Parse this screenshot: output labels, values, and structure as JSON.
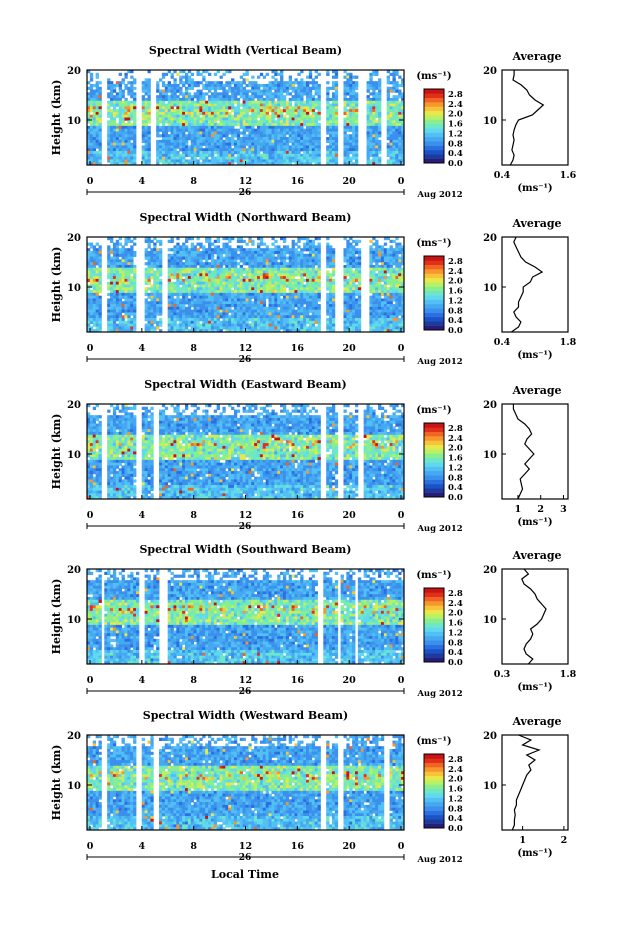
{
  "figure": {
    "xlabel": "Local Time",
    "date_label": "26",
    "month_label": "Aug 2012",
    "colorbar_unit": "(ms⁻¹)",
    "ylabel": "Height (km)",
    "avg_title": "Average",
    "avg_xlabel": "(ms⁻¹)"
  },
  "colors": {
    "scale": [
      "#2a1a7a",
      "#1e3a9a",
      "#1a52c8",
      "#2a70e0",
      "#3a90ec",
      "#46a8f0",
      "#52c0f4",
      "#60d8ee",
      "#6ee6c8",
      "#88ee8e",
      "#b8f066",
      "#e8e84a",
      "#f8c23a",
      "#f8962e",
      "#f06424",
      "#e0301c",
      "#c81414"
    ],
    "background": "#ffffff",
    "axis": "#000000"
  },
  "chart_data": [
    {
      "type": "heatmap",
      "title": "Spectral Width (Vertical Beam)",
      "x_ticks": [
        "0",
        "4",
        "8",
        "12",
        "16",
        "20",
        "0"
      ],
      "xlim": [
        0,
        24
      ],
      "y_ticks": [
        "20",
        "10"
      ],
      "ylim": [
        1,
        20
      ],
      "colorbar_ticks": [
        "2.8",
        "2.4",
        "2.0",
        "1.6",
        "1.2",
        "0.8",
        "0.4",
        "0.0"
      ],
      "colorbar_range": [
        0.0,
        3.0
      ],
      "gaps_hours": [
        [
          1.2,
          1.6
        ],
        [
          3.7,
          4.2
        ],
        [
          4.8,
          5.3
        ],
        [
          17.6,
          18.0
        ],
        [
          19.0,
          19.5
        ],
        [
          20.6,
          21.2
        ],
        [
          22.3,
          22.7
        ]
      ],
      "average": {
        "x_ticks": [
          "0.4",
          "1.6"
        ],
        "xlim": [
          0.4,
          1.6
        ],
        "height_km": [
          1,
          2,
          3,
          4,
          5,
          6,
          7,
          8,
          9,
          10,
          11,
          12,
          13,
          14,
          15,
          16,
          17,
          18,
          19,
          20
        ],
        "values": [
          0.55,
          0.6,
          0.62,
          0.58,
          0.6,
          0.62,
          0.6,
          0.62,
          0.65,
          0.7,
          0.95,
          1.05,
          1.15,
          1.0,
          0.9,
          0.85,
          0.75,
          0.6,
          0.62,
          0.62
        ]
      }
    },
    {
      "type": "heatmap",
      "title": "Spectral Width (Northward Beam)",
      "x_ticks": [
        "0",
        "4",
        "8",
        "12",
        "16",
        "20",
        "0"
      ],
      "xlim": [
        0,
        24
      ],
      "y_ticks": [
        "20",
        "10"
      ],
      "ylim": [
        1,
        20
      ],
      "colorbar_ticks": [
        "2.8",
        "2.4",
        "2.0",
        "1.6",
        "1.2",
        "0.8",
        "0.4",
        "0.0"
      ],
      "colorbar_range": [
        0.0,
        3.0
      ],
      "gaps_hours": [
        [
          1.2,
          1.5
        ],
        [
          3.8,
          4.3
        ],
        [
          5.6,
          6.2
        ],
        [
          17.6,
          18.0
        ],
        [
          18.8,
          19.4
        ],
        [
          20.8,
          21.4
        ]
      ],
      "average": {
        "x_ticks": [
          "0.4",
          "1.8"
        ],
        "xlim": [
          0.4,
          1.8
        ],
        "height_km": [
          1,
          2,
          3,
          4,
          5,
          6,
          7,
          8,
          9,
          10,
          11,
          12,
          13,
          14,
          15,
          16,
          17,
          18,
          19,
          20
        ],
        "values": [
          0.6,
          0.75,
          0.8,
          0.7,
          0.65,
          0.75,
          0.75,
          0.8,
          0.85,
          0.85,
          1.0,
          1.05,
          1.25,
          1.1,
          0.9,
          0.8,
          0.75,
          0.7,
          0.65,
          0.7
        ]
      }
    },
    {
      "type": "heatmap",
      "title": "Spectral Width (Eastward Beam)",
      "x_ticks": [
        "0",
        "4",
        "8",
        "12",
        "16",
        "20",
        "0"
      ],
      "xlim": [
        0,
        24
      ],
      "y_ticks": [
        "20",
        "10"
      ],
      "ylim": [
        1,
        20
      ],
      "colorbar_ticks": [
        "2.8",
        "2.4",
        "2.0",
        "1.6",
        "1.2",
        "0.8",
        "0.4",
        "0.0"
      ],
      "colorbar_range": [
        0.0,
        3.0
      ],
      "gaps_hours": [
        [
          1.2,
          1.5
        ],
        [
          3.7,
          4.2
        ],
        [
          5.0,
          5.5
        ],
        [
          17.7,
          18.1
        ],
        [
          18.9,
          19.4
        ],
        [
          20.5,
          21.0
        ]
      ],
      "average": {
        "x_ticks": [
          "1",
          "2",
          "3"
        ],
        "xlim": [
          0.3,
          3.2
        ],
        "height_km": [
          1,
          2,
          3,
          4,
          5,
          6,
          7,
          8,
          9,
          10,
          11,
          12,
          13,
          14,
          15,
          16,
          17,
          18,
          19,
          20
        ],
        "values": [
          1.0,
          1.1,
          1.2,
          1.15,
          1.1,
          1.3,
          1.5,
          1.3,
          1.5,
          1.7,
          1.5,
          1.3,
          1.4,
          1.6,
          1.5,
          1.3,
          1.0,
          0.9,
          0.8,
          0.8
        ]
      }
    },
    {
      "type": "heatmap",
      "title": "Spectral Width (Southward Beam)",
      "x_ticks": [
        "0",
        "4",
        "8",
        "12",
        "16",
        "20",
        "0"
      ],
      "xlim": [
        0,
        24
      ],
      "y_ticks": [
        "20",
        "10"
      ],
      "ylim": [
        1,
        20
      ],
      "colorbar_ticks": [
        "2.8",
        "2.4",
        "2.0",
        "1.6",
        "1.2",
        "0.8",
        "0.4",
        "0.0"
      ],
      "colorbar_range": [
        0.0,
        3.0
      ],
      "gaps_hours": [
        [
          1.1,
          1.4
        ],
        [
          3.9,
          4.4
        ],
        [
          5.5,
          6.0
        ],
        [
          17.5,
          17.9
        ],
        [
          18.9,
          19.3
        ],
        [
          20.2,
          20.6
        ]
      ],
      "average": {
        "x_ticks": [
          "0.3",
          "1.8"
        ],
        "xlim": [
          0.3,
          1.8
        ],
        "height_km": [
          1,
          2,
          3,
          4,
          5,
          6,
          7,
          8,
          9,
          10,
          11,
          12,
          13,
          14,
          15,
          16,
          17,
          18,
          19,
          20
        ],
        "values": [
          0.9,
          1.0,
          0.85,
          0.8,
          0.85,
          0.95,
          1.0,
          0.95,
          1.1,
          1.2,
          1.25,
          1.3,
          1.2,
          1.1,
          1.05,
          0.95,
          0.8,
          0.75,
          0.9,
          0.8
        ]
      }
    },
    {
      "type": "heatmap",
      "title": "Spectral Width (Westward Beam)",
      "x_ticks": [
        "0",
        "4",
        "8",
        "12",
        "16",
        "20",
        "0"
      ],
      "xlim": [
        0,
        24
      ],
      "y_ticks": [
        "20",
        "10"
      ],
      "ylim": [
        1,
        20
      ],
      "colorbar_ticks": [
        "2.8",
        "2.4",
        "2.0",
        "1.6",
        "1.2",
        "0.8",
        "0.4",
        "0.0"
      ],
      "colorbar_range": [
        0.0,
        3.0
      ],
      "gaps_hours": [
        [
          1.2,
          1.5
        ],
        [
          3.6,
          4.1
        ],
        [
          5.0,
          5.5
        ],
        [
          17.6,
          18.0
        ],
        [
          19.0,
          19.4
        ],
        [
          22.4,
          22.8
        ]
      ],
      "average": {
        "x_ticks": [
          "1",
          "2"
        ],
        "xlim": [
          0.5,
          2.1
        ],
        "height_km": [
          1,
          2,
          3,
          4,
          5,
          6,
          7,
          8,
          9,
          10,
          11,
          12,
          13,
          14,
          15,
          16,
          17,
          18,
          19,
          20
        ],
        "values": [
          0.75,
          0.8,
          0.8,
          0.82,
          0.8,
          0.85,
          0.85,
          0.9,
          0.95,
          1.0,
          1.05,
          1.1,
          1.2,
          1.15,
          1.3,
          1.1,
          1.4,
          1.0,
          1.2,
          0.9
        ]
      }
    }
  ]
}
